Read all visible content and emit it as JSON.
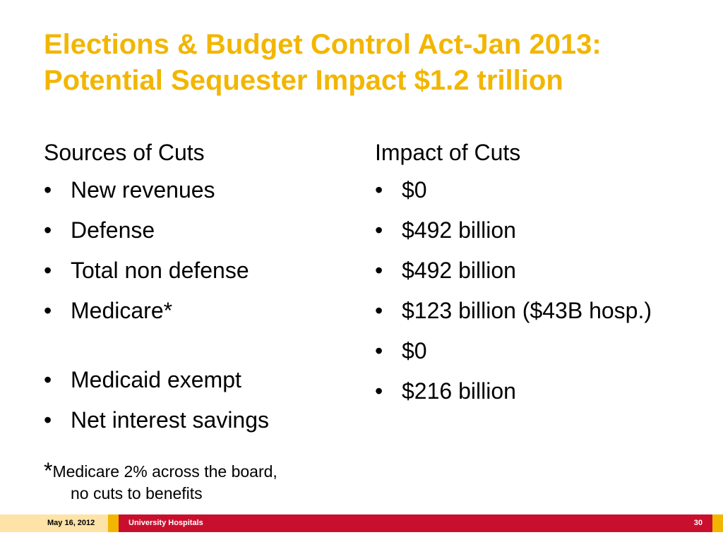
{
  "slide": {
    "title_line1": "Elections & Budget Control Act-Jan 2013:",
    "title_line2": "Potential Sequester Impact $1.2 trillion",
    "bullet_char": "•",
    "left": {
      "heading": "Sources of Cuts",
      "items": [
        "New revenues",
        "Defense",
        "Total non defense",
        "Medicare*",
        "Medicaid exempt",
        "Net interest savings"
      ]
    },
    "right": {
      "heading": "Impact of Cuts",
      "items": [
        "$0",
        "$492 billion",
        "$492 billion",
        "$123 billion ($43B hosp.)",
        "$0",
        "$216 billion"
      ]
    },
    "footnote": {
      "star": "*",
      "line1": "Medicare 2% across the board,",
      "line2": "no cuts to benefits"
    }
  },
  "footer": {
    "date": "May 16, 2012",
    "organization": "University Hospitals",
    "page_number": "30"
  },
  "colors": {
    "title": "#F2B600",
    "footer_gold": "#F2B600",
    "footer_light": "#FDE3A7",
    "footer_red": "#C8102E"
  }
}
